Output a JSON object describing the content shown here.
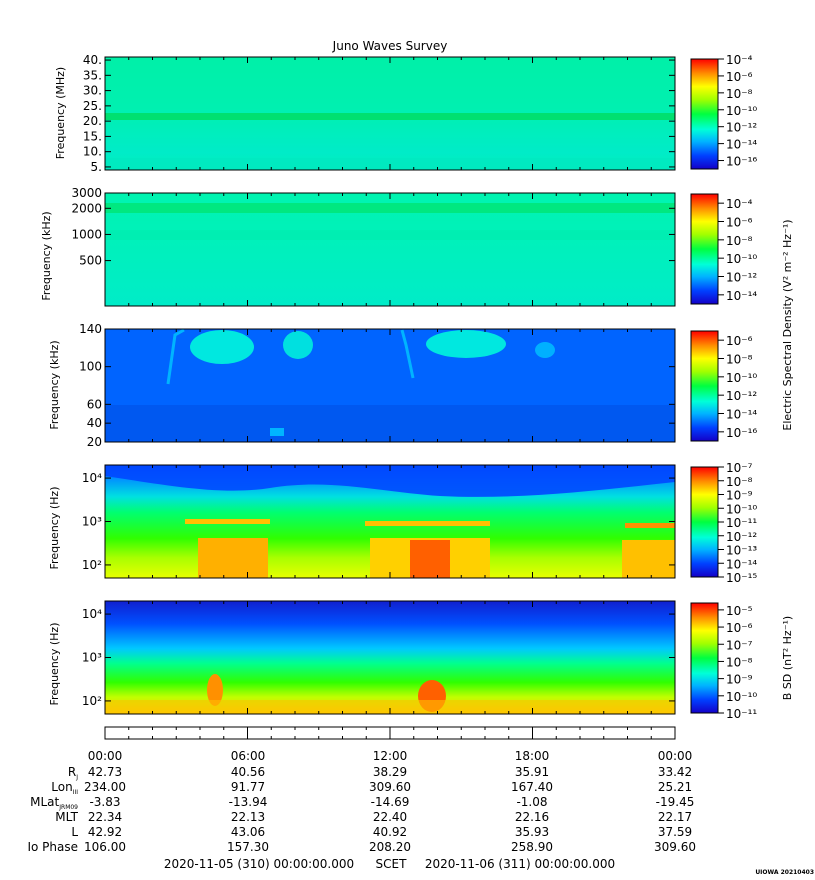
{
  "chart_data": {
    "type": "heatmap",
    "title": "Juno Waves Survey",
    "x_axis": {
      "tick_labels": [
        "00:00",
        "06:00",
        "12:00",
        "18:00",
        "00:00"
      ]
    },
    "panels": [
      {
        "id": "hfr-high",
        "ylabel": "Frequency (MHz)",
        "yscale": "linear",
        "ylim": [
          4,
          41
        ],
        "yticks": [
          5,
          10,
          15,
          20,
          25,
          30,
          35,
          40
        ],
        "ytick_labels": [
          "5.",
          "10.",
          "15.",
          "20.",
          "25.",
          "30.",
          "35.",
          "40."
        ],
        "colorbar": {
          "scale": "log",
          "range_exp": [
            -17,
            -4
          ],
          "tick_exps": [
            -4,
            -6,
            -8,
            -10,
            -12,
            -14,
            -16
          ]
        }
      },
      {
        "id": "hfr-low",
        "ylabel": "Frequency (kHz)",
        "yscale": "log",
        "ylim": [
          150,
          3000
        ],
        "yticks": [
          500,
          1000,
          2000,
          3000
        ],
        "ytick_labels": [
          "500",
          "1000",
          "2000",
          "3000"
        ],
        "colorbar": {
          "scale": "log",
          "range_exp": [
            -15,
            -3
          ],
          "tick_exps": [
            -4,
            -6,
            -8,
            -10,
            -12,
            -14
          ]
        }
      },
      {
        "id": "lfr-high",
        "ylabel": "Frequency (kHz)",
        "yscale": "linear",
        "ylim": [
          20,
          140
        ],
        "yticks": [
          20,
          40,
          60,
          100,
          140
        ],
        "ytick_labels": [
          "20",
          "40",
          "60",
          "100",
          "140"
        ],
        "colorbar": {
          "scale": "log",
          "range_exp": [
            -17,
            -5
          ],
          "tick_exps": [
            -6,
            -8,
            -10,
            -12,
            -14,
            -16
          ]
        }
      },
      {
        "id": "lfr-low",
        "ylabel": "Frequency (Hz)",
        "yscale": "log",
        "ylim": [
          50,
          20000
        ],
        "yticks": [
          100,
          1000,
          10000
        ],
        "ytick_labels": [
          "10²",
          "10³",
          "10⁴"
        ],
        "colorbar": {
          "scale": "log",
          "range_exp": [
            -15,
            -7
          ],
          "tick_exps": [
            -7,
            -8,
            -9,
            -10,
            -11,
            -12,
            -13,
            -14,
            -15
          ]
        }
      },
      {
        "id": "magnetic",
        "ylabel": "Frequency (Hz)",
        "yscale": "log",
        "ylim": [
          50,
          20000
        ],
        "yticks": [
          100,
          1000,
          10000
        ],
        "ytick_labels": [
          "10²",
          "10³",
          "10⁴"
        ],
        "colorbar": {
          "scale": "log",
          "range_exp": [
            -11,
            -4.6
          ],
          "tick_exps": [
            -5,
            -6,
            -7,
            -8,
            -9,
            -10,
            -11
          ]
        }
      }
    ],
    "colorbar_labels": {
      "electric": "Electric Spectral Density (V² m⁻² Hz⁻¹)",
      "magnetic": "B SD (nT² Hz⁻¹)"
    },
    "ephemeris": {
      "rows": [
        {
          "label": "R",
          "sub": "J",
          "values": [
            "42.73",
            "40.56",
            "38.29",
            "35.91",
            "33.42"
          ]
        },
        {
          "label": "Lon",
          "sub": "III",
          "values": [
            "234.00",
            "91.77",
            "309.60",
            "167.40",
            "25.21"
          ]
        },
        {
          "label": "MLat",
          "sub": "JRM09",
          "values": [
            "-3.83",
            "-13.94",
            "-14.69",
            "-1.08",
            "-19.45"
          ]
        },
        {
          "label": "MLT",
          "sub": "",
          "values": [
            "22.34",
            "22.13",
            "22.40",
            "22.16",
            "22.17"
          ]
        },
        {
          "label": "L",
          "sub": "",
          "values": [
            "42.92",
            "43.06",
            "40.92",
            "35.93",
            "37.59"
          ]
        },
        {
          "label": "Io Phase",
          "sub": "",
          "values": [
            "106.00",
            "157.30",
            "208.20",
            "258.90",
            "309.60"
          ]
        }
      ]
    },
    "time_range": {
      "start": "2020-11-05 (310) 00:00:00.000",
      "frame": "SCET",
      "end": "2020-11-06 (311) 00:00:00.000"
    },
    "footer_tag": "UIOWA 20210403"
  }
}
